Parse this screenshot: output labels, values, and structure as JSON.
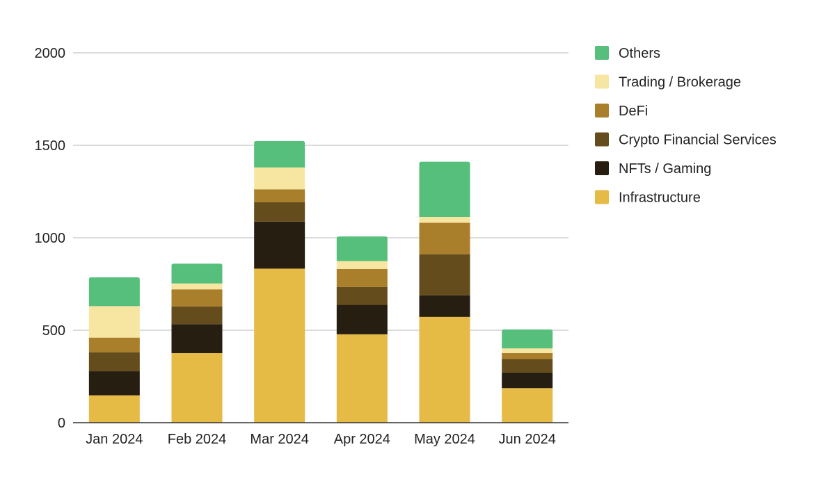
{
  "chart_data": {
    "type": "bar",
    "stacked": true,
    "title": "",
    "xlabel": "",
    "ylabel": "",
    "ylim": [
      0,
      2000
    ],
    "yticks": [
      0,
      500,
      1000,
      1500,
      2000
    ],
    "grid": true,
    "legend_position": "right",
    "categories": [
      "Jan 2024",
      "Feb 2024",
      "Mar 2024",
      "Apr 2024",
      "May 2024",
      "Jun 2024"
    ],
    "series": [
      {
        "name": "Infrastructure",
        "color": "#e5ba45",
        "values": [
          148,
          376,
          833,
          478,
          572,
          187
        ]
      },
      {
        "name": "NFTs / Gaming",
        "color": "#261e10",
        "values": [
          130,
          157,
          254,
          159,
          117,
          84
        ]
      },
      {
        "name": "Crypto Financial Services",
        "color": "#654c1c",
        "values": [
          103,
          96,
          105,
          97,
          222,
          73
        ]
      },
      {
        "name": "DeFi",
        "color": "#a97f2b",
        "values": [
          79,
          92,
          70,
          97,
          170,
          32
        ]
      },
      {
        "name": "Trading / Brokerage",
        "color": "#f7e6a2",
        "values": [
          170,
          32,
          118,
          43,
          32,
          26
        ]
      },
      {
        "name": "Others",
        "color": "#56bf7c",
        "values": [
          156,
          107,
          143,
          133,
          298,
          102
        ]
      }
    ],
    "legend_order": [
      "Others",
      "Trading / Brokerage",
      "DeFi",
      "Crypto Financial Services",
      "NFTs / Gaming",
      "Infrastructure"
    ]
  }
}
